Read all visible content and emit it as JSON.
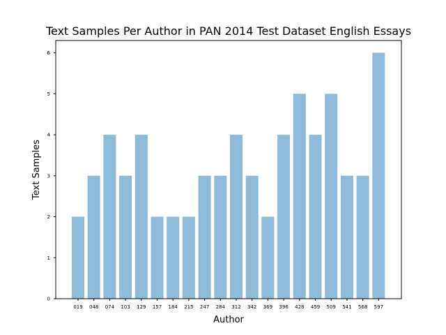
{
  "chart_data": {
    "type": "bar",
    "title": "Text Samples Per Author in PAN 2014 Test Dataset English Essays",
    "xlabel": "Author",
    "ylabel": "Text Samples",
    "categories": [
      "019",
      "048",
      "074",
      "103",
      "129",
      "157",
      "184",
      "215",
      "247",
      "284",
      "312",
      "342",
      "369",
      "396",
      "428",
      "459",
      "509",
      "541",
      "568",
      "597"
    ],
    "values": [
      2,
      3,
      4,
      3,
      4,
      2,
      2,
      2,
      3,
      3,
      4,
      3,
      2,
      4,
      5,
      4,
      5,
      3,
      3,
      6
    ],
    "ylim": [
      0,
      6.3
    ],
    "yticks": [
      "0",
      "1",
      "2",
      "3",
      "4",
      "5",
      "6"
    ],
    "grid": false,
    "bar_color": "#8fbbda"
  }
}
